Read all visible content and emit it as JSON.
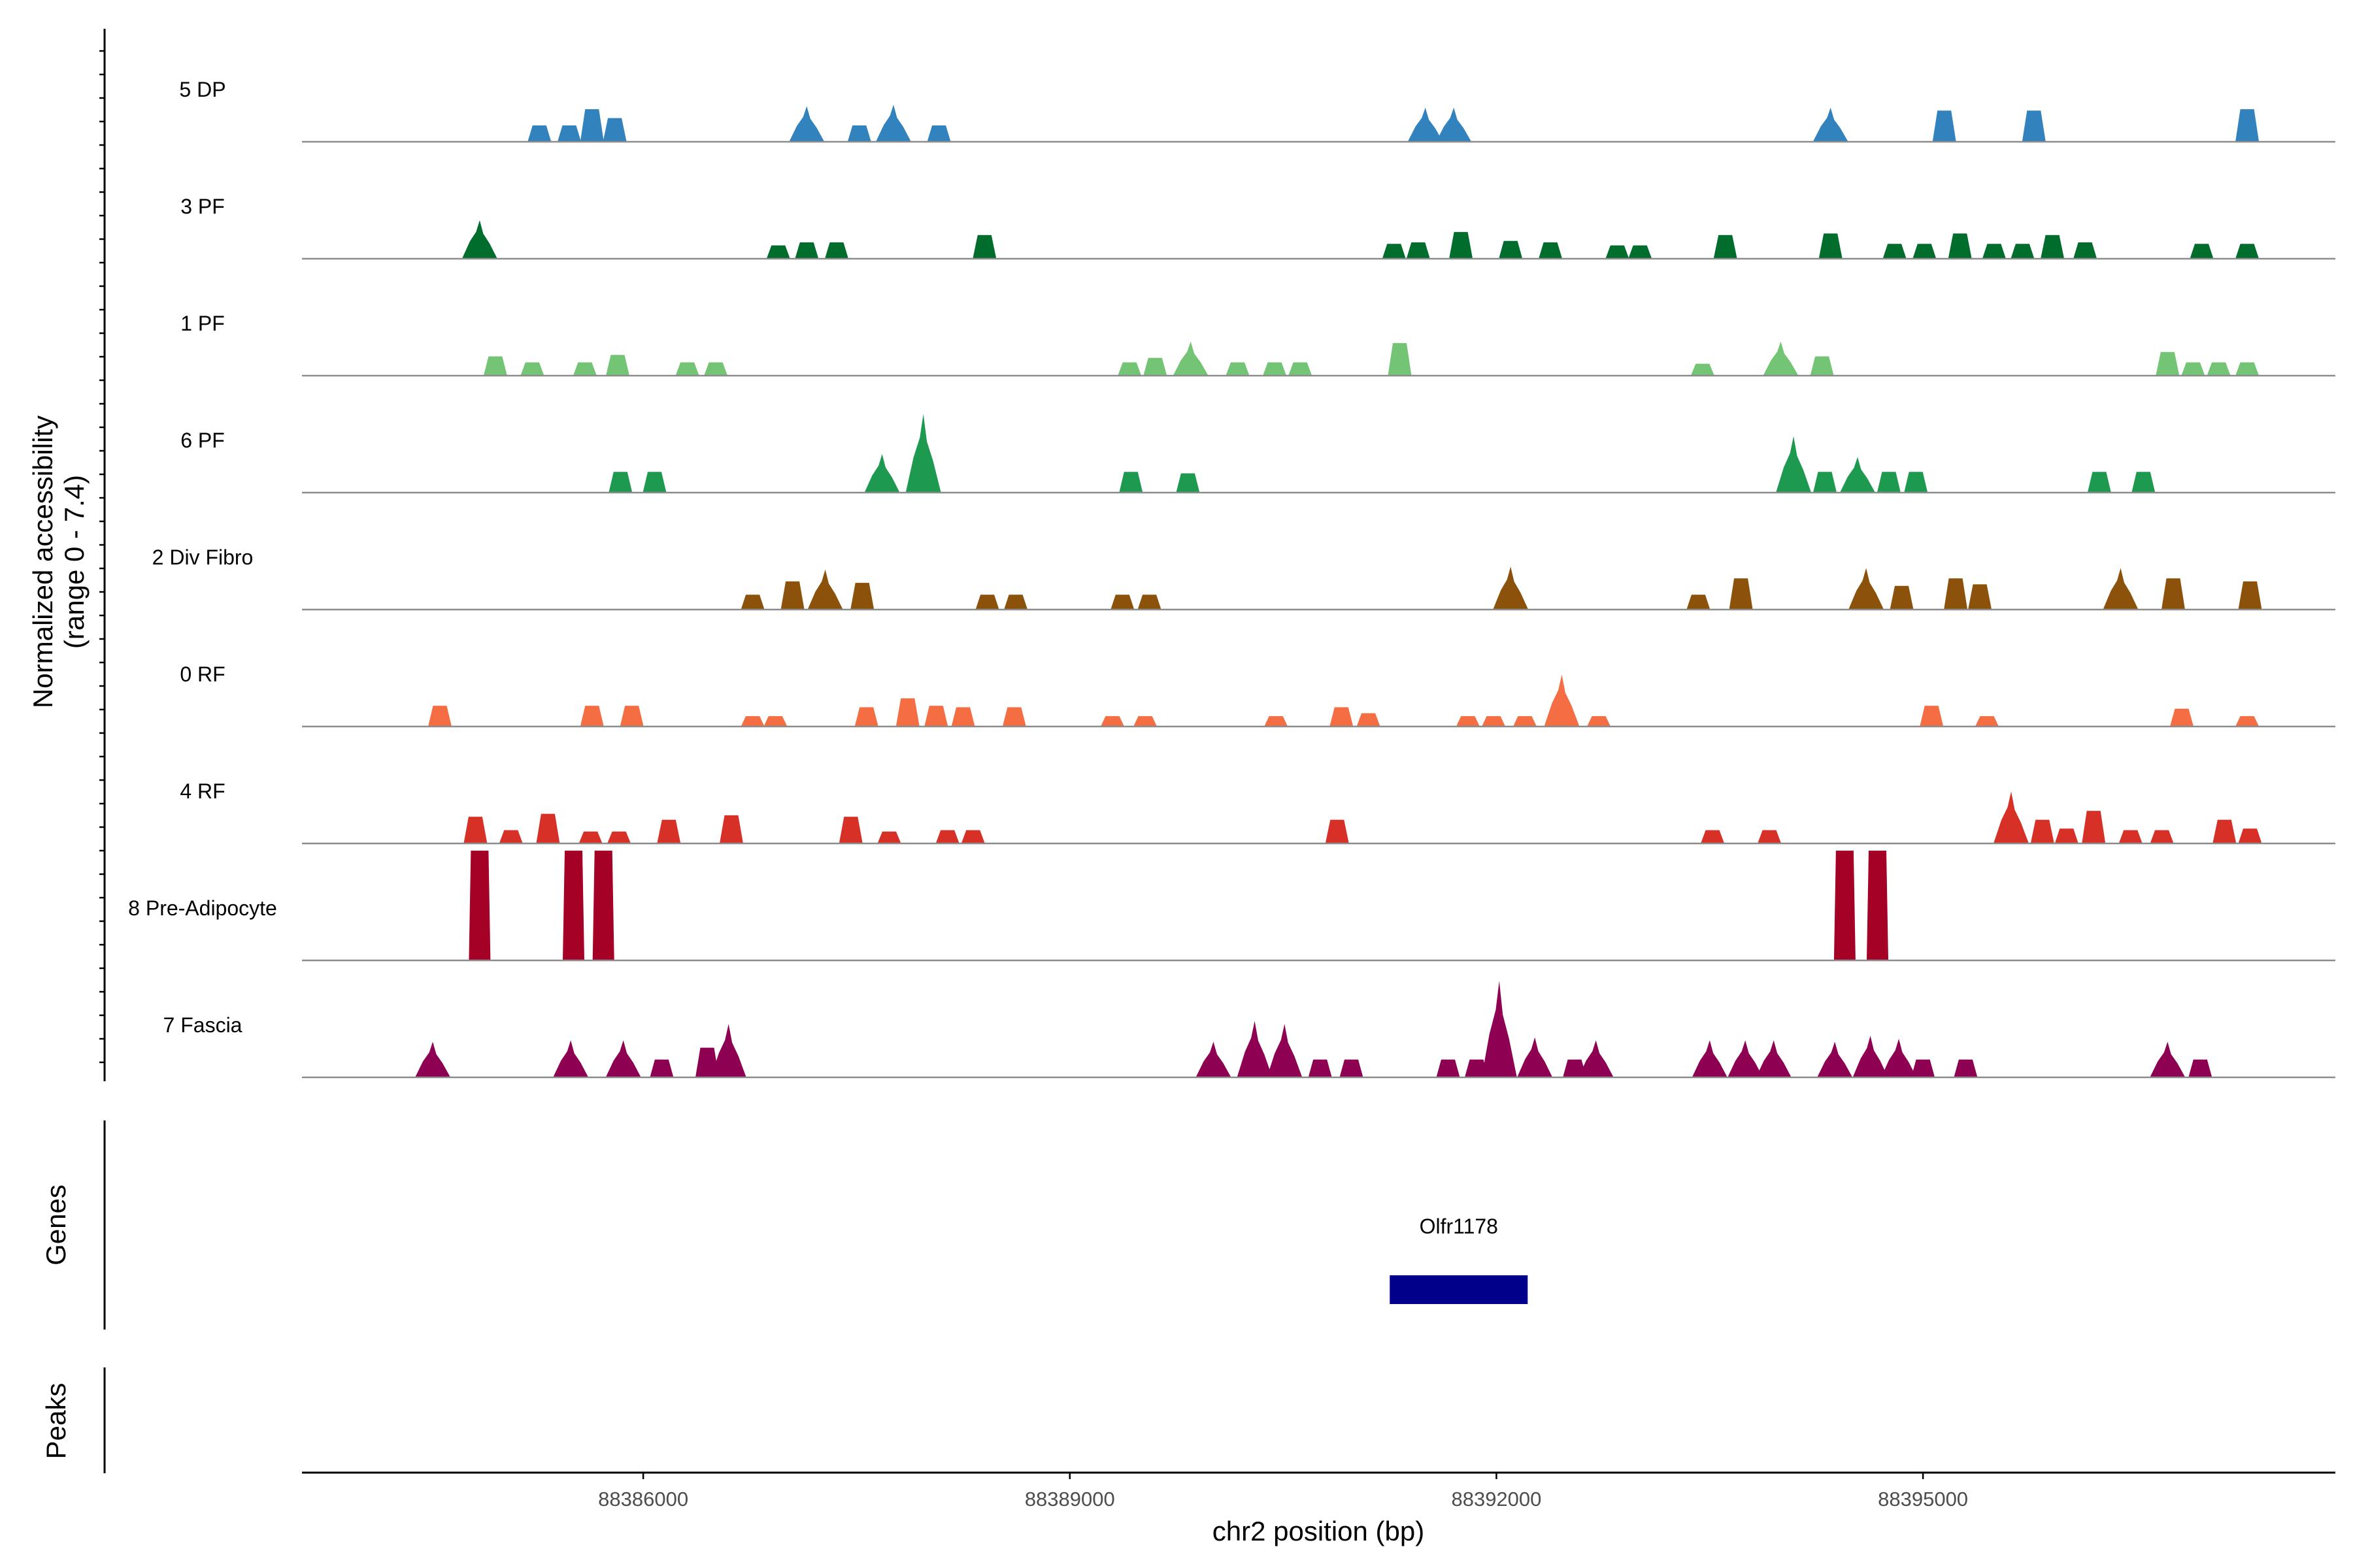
{
  "chart_data": {
    "type": "area",
    "xlabel": "chr2 position (bp)",
    "ylabel_line1": "Normalized accessibility",
    "ylabel_line2": "(range 0 - 7.4)",
    "y_range": [
      0,
      7.4
    ],
    "x_range": [
      88383600,
      88397900
    ],
    "x_ticks": [
      88386000,
      88389000,
      88392000,
      88395000
    ],
    "x_tick_labels": [
      "88386000",
      "88389000",
      "88392000",
      "88395000"
    ],
    "genes_panel_label": "Genes",
    "peaks_panel_label": "Peaks",
    "genes": [
      {
        "name": "Olfr1178",
        "start": 88391250,
        "end": 88392220,
        "color": "#00008b"
      }
    ],
    "tracks": [
      {
        "name": "5 DP",
        "color": "#3182bd",
        "peaks": [
          [
            88385270,
            1.1
          ],
          [
            88385480,
            1.1
          ],
          [
            88385640,
            2.2
          ],
          [
            88385800,
            1.6
          ],
          [
            88387150,
            2.4
          ],
          [
            88387520,
            1.1
          ],
          [
            88387760,
            2.5
          ],
          [
            88388080,
            1.1
          ],
          [
            88391500,
            2.3
          ],
          [
            88391700,
            2.3
          ],
          [
            88394350,
            2.3
          ],
          [
            88395150,
            2.1
          ],
          [
            88395780,
            2.1
          ],
          [
            88397280,
            2.2
          ]
        ]
      },
      {
        "name": "3 PF",
        "color": "#006d2c",
        "peaks": [
          [
            88384850,
            2.6
          ],
          [
            88386950,
            0.9
          ],
          [
            88387150,
            1.1
          ],
          [
            88387360,
            1.1
          ],
          [
            88388400,
            1.6
          ],
          [
            88391280,
            1.0
          ],
          [
            88391450,
            1.1
          ],
          [
            88391750,
            1.8
          ],
          [
            88392100,
            1.2
          ],
          [
            88392380,
            1.1
          ],
          [
            88392850,
            0.9
          ],
          [
            88393010,
            0.9
          ],
          [
            88393610,
            1.6
          ],
          [
            88394350,
            1.7
          ],
          [
            88394800,
            1.0
          ],
          [
            88395010,
            1.0
          ],
          [
            88395260,
            1.7
          ],
          [
            88395500,
            1.0
          ],
          [
            88395700,
            1.0
          ],
          [
            88395910,
            1.6
          ],
          [
            88396140,
            1.1
          ],
          [
            88396960,
            1.0
          ],
          [
            88397280,
            1.0
          ]
        ]
      },
      {
        "name": "1 PF",
        "color": "#74c476",
        "peaks": [
          [
            88384960,
            1.3
          ],
          [
            88385220,
            0.9
          ],
          [
            88385590,
            0.9
          ],
          [
            88385820,
            1.4
          ],
          [
            88386310,
            0.9
          ],
          [
            88386510,
            0.9
          ],
          [
            88389420,
            0.9
          ],
          [
            88389600,
            1.2
          ],
          [
            88389850,
            2.3
          ],
          [
            88390180,
            0.9
          ],
          [
            88390440,
            0.9
          ],
          [
            88390620,
            0.9
          ],
          [
            88391320,
            2.2
          ],
          [
            88393450,
            0.8
          ],
          [
            88394000,
            2.3
          ],
          [
            88394290,
            1.3
          ],
          [
            88396720,
            1.6
          ],
          [
            88396900,
            0.9
          ],
          [
            88397080,
            0.9
          ],
          [
            88397280,
            0.9
          ]
        ]
      },
      {
        "name": "6 PF",
        "color": "#1d9950",
        "peaks": [
          [
            88385840,
            1.4
          ],
          [
            88386080,
            1.4
          ],
          [
            88387680,
            2.6
          ],
          [
            88387970,
            5.3
          ],
          [
            88389430,
            1.4
          ],
          [
            88389830,
            1.3
          ],
          [
            88394090,
            3.8
          ],
          [
            88394310,
            1.4
          ],
          [
            88394540,
            2.4
          ],
          [
            88394760,
            1.4
          ],
          [
            88394950,
            1.4
          ],
          [
            88396240,
            1.4
          ],
          [
            88396550,
            1.4
          ]
        ]
      },
      {
        "name": "2 Div Fibro",
        "color": "#8c510a",
        "peaks": [
          [
            88386770,
            1.0
          ],
          [
            88387050,
            1.9
          ],
          [
            88387280,
            2.7
          ],
          [
            88387540,
            1.8
          ],
          [
            88388420,
            1.0
          ],
          [
            88388620,
            1.0
          ],
          [
            88389370,
            1.0
          ],
          [
            88389560,
            1.0
          ],
          [
            88392100,
            2.9
          ],
          [
            88393420,
            1.0
          ],
          [
            88393720,
            2.1
          ],
          [
            88394600,
            2.8
          ],
          [
            88394850,
            1.6
          ],
          [
            88395230,
            2.1
          ],
          [
            88395400,
            1.7
          ],
          [
            88396390,
            2.8
          ],
          [
            88396760,
            2.1
          ],
          [
            88397300,
            1.9
          ]
        ]
      },
      {
        "name": "0 RF",
        "color": "#f46d43",
        "peaks": [
          [
            88384570,
            1.4
          ],
          [
            88385640,
            1.4
          ],
          [
            88385920,
            1.4
          ],
          [
            88386770,
            0.7
          ],
          [
            88386930,
            0.7
          ],
          [
            88387570,
            1.3
          ],
          [
            88387860,
            1.9
          ],
          [
            88388060,
            1.4
          ],
          [
            88388250,
            1.3
          ],
          [
            88388610,
            1.3
          ],
          [
            88389300,
            0.7
          ],
          [
            88389530,
            0.7
          ],
          [
            88390450,
            0.7
          ],
          [
            88390910,
            1.3
          ],
          [
            88391100,
            0.9
          ],
          [
            88391800,
            0.7
          ],
          [
            88391980,
            0.7
          ],
          [
            88392200,
            0.7
          ],
          [
            88392460,
            3.5
          ],
          [
            88392720,
            0.7
          ],
          [
            88395060,
            1.4
          ],
          [
            88395450,
            0.7
          ],
          [
            88396820,
            1.2
          ],
          [
            88397280,
            0.7
          ]
        ]
      },
      {
        "name": "4 RF",
        "color": "#d73027",
        "peaks": [
          [
            88384820,
            1.8
          ],
          [
            88385070,
            0.9
          ],
          [
            88385330,
            2.0
          ],
          [
            88385630,
            0.8
          ],
          [
            88385830,
            0.8
          ],
          [
            88386180,
            1.6
          ],
          [
            88386620,
            1.9
          ],
          [
            88387460,
            1.8
          ],
          [
            88387730,
            0.8
          ],
          [
            88388140,
            0.9
          ],
          [
            88388320,
            0.9
          ],
          [
            88390880,
            1.6
          ],
          [
            88393520,
            0.9
          ],
          [
            88393920,
            0.9
          ],
          [
            88395620,
            3.5
          ],
          [
            88395840,
            1.6
          ],
          [
            88396010,
            1.0
          ],
          [
            88396200,
            2.2
          ],
          [
            88396460,
            0.9
          ],
          [
            88396680,
            0.9
          ],
          [
            88397120,
            1.6
          ],
          [
            88397300,
            1.0
          ]
        ]
      },
      {
        "name": "8 Pre-Adipocyte",
        "color": "#a50026",
        "peaks": [
          [
            88384850,
            7.4
          ],
          [
            88385510,
            7.4
          ],
          [
            88385720,
            7.4
          ],
          [
            88394450,
            7.4
          ],
          [
            88394680,
            7.4
          ]
        ]
      },
      {
        "name": "7 Fascia",
        "color": "#8e0152",
        "peaks": [
          [
            88384520,
            2.4
          ],
          [
            88385490,
            2.5
          ],
          [
            88385860,
            2.5
          ],
          [
            88386130,
            1.2
          ],
          [
            88386450,
            2.0
          ],
          [
            88386600,
            3.6
          ],
          [
            88390010,
            2.4
          ],
          [
            88390300,
            3.8
          ],
          [
            88390510,
            3.6
          ],
          [
            88390760,
            1.2
          ],
          [
            88390980,
            1.2
          ],
          [
            88391660,
            1.2
          ],
          [
            88391860,
            1.2
          ],
          [
            88392020,
            6.5
          ],
          [
            88392270,
            2.7
          ],
          [
            88392550,
            1.2
          ],
          [
            88392700,
            2.5
          ],
          [
            88393500,
            2.5
          ],
          [
            88393750,
            2.5
          ],
          [
            88393950,
            2.5
          ],
          [
            88394380,
            2.4
          ],
          [
            88394630,
            2.8
          ],
          [
            88394830,
            2.6
          ],
          [
            88395000,
            1.2
          ],
          [
            88395300,
            1.2
          ],
          [
            88396720,
            2.4
          ],
          [
            88396950,
            1.2
          ]
        ]
      }
    ]
  }
}
